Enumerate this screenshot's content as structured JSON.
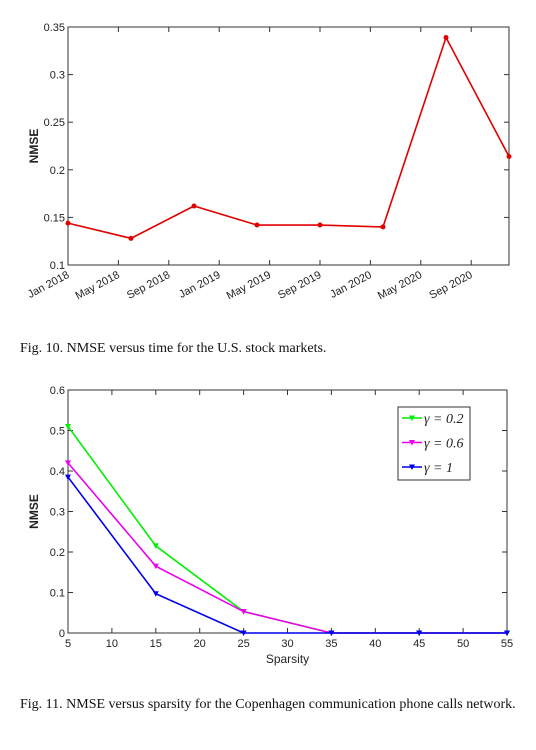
{
  "chart_data": [
    {
      "type": "line",
      "ylabel": "NMSE",
      "x": [
        "2018-01",
        "2018-06",
        "2018-11",
        "2019-04",
        "2019-09",
        "2020-02",
        "2020-07",
        "2020-12"
      ],
      "values": [
        0.144,
        0.128,
        0.162,
        0.142,
        0.142,
        0.14,
        0.339,
        0.214
      ],
      "color": "#e00000",
      "xlim": [
        "2018-01",
        "2020-12"
      ],
      "xticks": [
        {
          "value": "2018-01",
          "label": "Jan 2018"
        },
        {
          "value": "2018-05",
          "label": "May 2018"
        },
        {
          "value": "2018-09",
          "label": "Sep 2018"
        },
        {
          "value": "2019-01",
          "label": "Jan 2019"
        },
        {
          "value": "2019-05",
          "label": "May 2019"
        },
        {
          "value": "2019-09",
          "label": "Sep 2019"
        },
        {
          "value": "2020-01",
          "label": "Jan 2020"
        },
        {
          "value": "2020-05",
          "label": "May 2020"
        },
        {
          "value": "2020-09",
          "label": "Sep 2020"
        }
      ],
      "ylim": [
        0.1,
        0.35
      ],
      "yticks": [
        0.1,
        0.15,
        0.2,
        0.25,
        0.3,
        0.35
      ],
      "grid": false,
      "caption": "Fig. 10.  NMSE versus time for the U.S. stock markets."
    },
    {
      "type": "line",
      "xlabel": "Sparsity",
      "ylabel": "NMSE",
      "x": [
        5,
        15,
        25,
        35,
        45,
        55
      ],
      "series": [
        {
          "name": "γ = 0.2",
          "color": "#00ee00",
          "values": [
            0.51,
            0.215,
            0.053,
            0,
            0,
            0
          ]
        },
        {
          "name": "γ = 0.6",
          "color": "#ee00ee",
          "values": [
            0.42,
            0.165,
            0.053,
            0,
            0,
            0
          ]
        },
        {
          "name": "γ = 1",
          "color": "#0000ee",
          "values": [
            0.385,
            0.097,
            0,
            0,
            0,
            0
          ]
        }
      ],
      "xlim": [
        5,
        55
      ],
      "xticks": [
        5,
        10,
        15,
        20,
        25,
        30,
        35,
        40,
        45,
        50,
        55
      ],
      "ylim": [
        0,
        0.6
      ],
      "yticks": [
        0,
        0.1,
        0.2,
        0.3,
        0.4,
        0.5,
        0.6
      ],
      "grid": false,
      "legend": "upper right",
      "caption": "Fig. 11.  NMSE versus sparsity for the Copenhagen communication phone calls network."
    }
  ]
}
